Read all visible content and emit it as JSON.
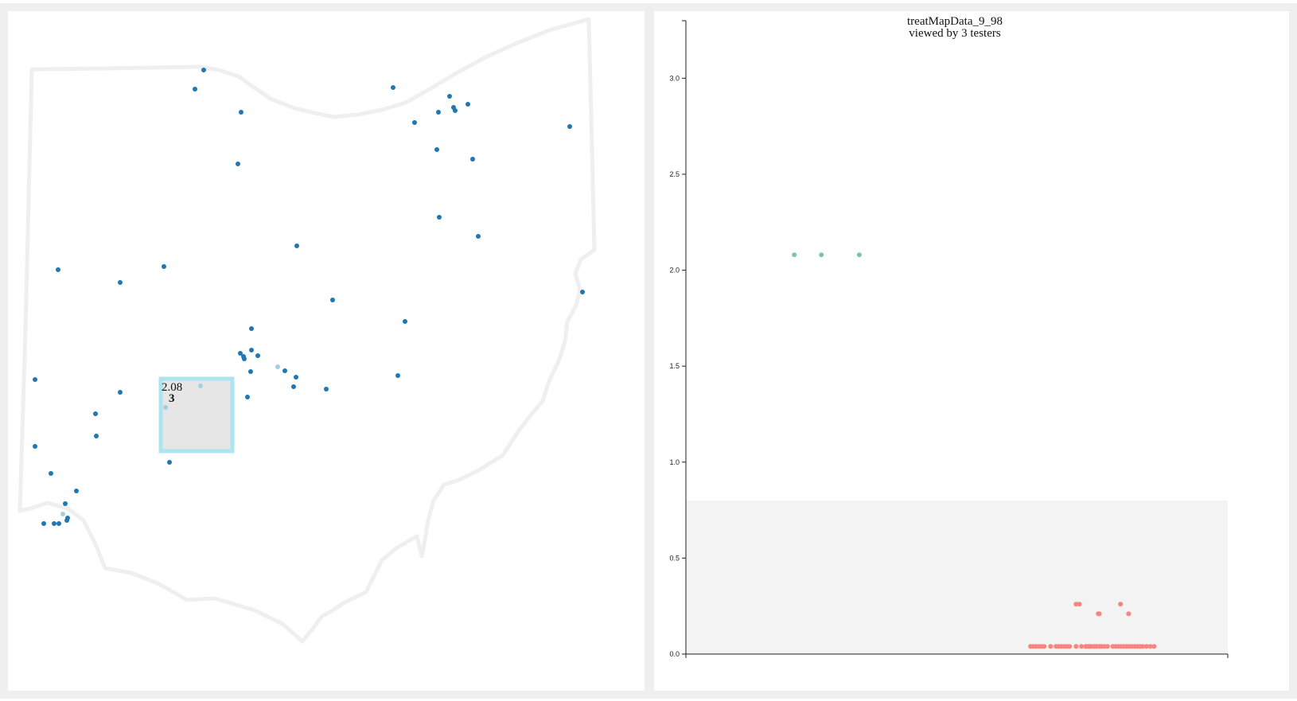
{
  "colors": {
    "map_point": "#1f78b4",
    "map_point_selected": "#a6cee3",
    "outline": "#efefef",
    "selection_fill": "#e6e6e6",
    "selection_stroke": "#aee4f2",
    "cluster_high": "#7fc2ae",
    "cluster_low": "#f3867e",
    "band_fill": "#f3f3f3"
  },
  "map": {
    "selection": {
      "value_label": "2.08",
      "count_label": "3"
    }
  },
  "chart_data": {
    "type": "scatter",
    "title": "treatMapData_9_98",
    "subtitle": "viewed by 3 testers",
    "ylim": [
      0,
      3.3
    ],
    "yticks": [
      0.0,
      0.5,
      1.0,
      1.5,
      2.0,
      2.5,
      3.0
    ],
    "ytick_labels": [
      "0.0",
      "0.5",
      "1.0",
      "1.5",
      "2.0",
      "2.5",
      "3.0"
    ],
    "shaded_band": [
      0,
      0.8
    ],
    "series": [
      {
        "color": "#7fc2ae",
        "x": [
          0.2,
          0.25,
          0.32
        ],
        "y": [
          2.08,
          2.08,
          2.08
        ]
      },
      {
        "color": "#f3867e",
        "x": [
          0.636,
          0.641,
          0.646,
          0.651,
          0.656,
          0.661,
          0.673,
          0.683,
          0.688,
          0.693,
          0.698,
          0.703,
          0.708,
          0.72,
          0.73,
          0.738,
          0.738,
          0.743,
          0.748,
          0.753,
          0.758,
          0.763,
          0.768,
          0.773,
          0.778,
          0.788,
          0.793,
          0.798,
          0.803,
          0.808,
          0.813,
          0.818,
          0.823,
          0.828,
          0.833,
          0.838,
          0.843,
          0.85,
          0.857,
          0.864,
          0.764,
          0.745,
          0.755,
          0.72,
          0.802,
          0.726,
          0.761,
          0.763,
          0.817
        ],
        "y": [
          0.04,
          0.04,
          0.04,
          0.04,
          0.04,
          0.04,
          0.04,
          0.04,
          0.04,
          0.04,
          0.04,
          0.04,
          0.04,
          0.04,
          0.04,
          0.04,
          0.04,
          0.04,
          0.04,
          0.04,
          0.04,
          0.04,
          0.04,
          0.04,
          0.04,
          0.04,
          0.04,
          0.04,
          0.04,
          0.04,
          0.04,
          0.04,
          0.04,
          0.04,
          0.04,
          0.04,
          0.04,
          0.04,
          0.04,
          0.04,
          0.04,
          0.04,
          0.04,
          0.26,
          0.26,
          0.26,
          0.21,
          0.21,
          0.21
        ]
      }
    ]
  }
}
